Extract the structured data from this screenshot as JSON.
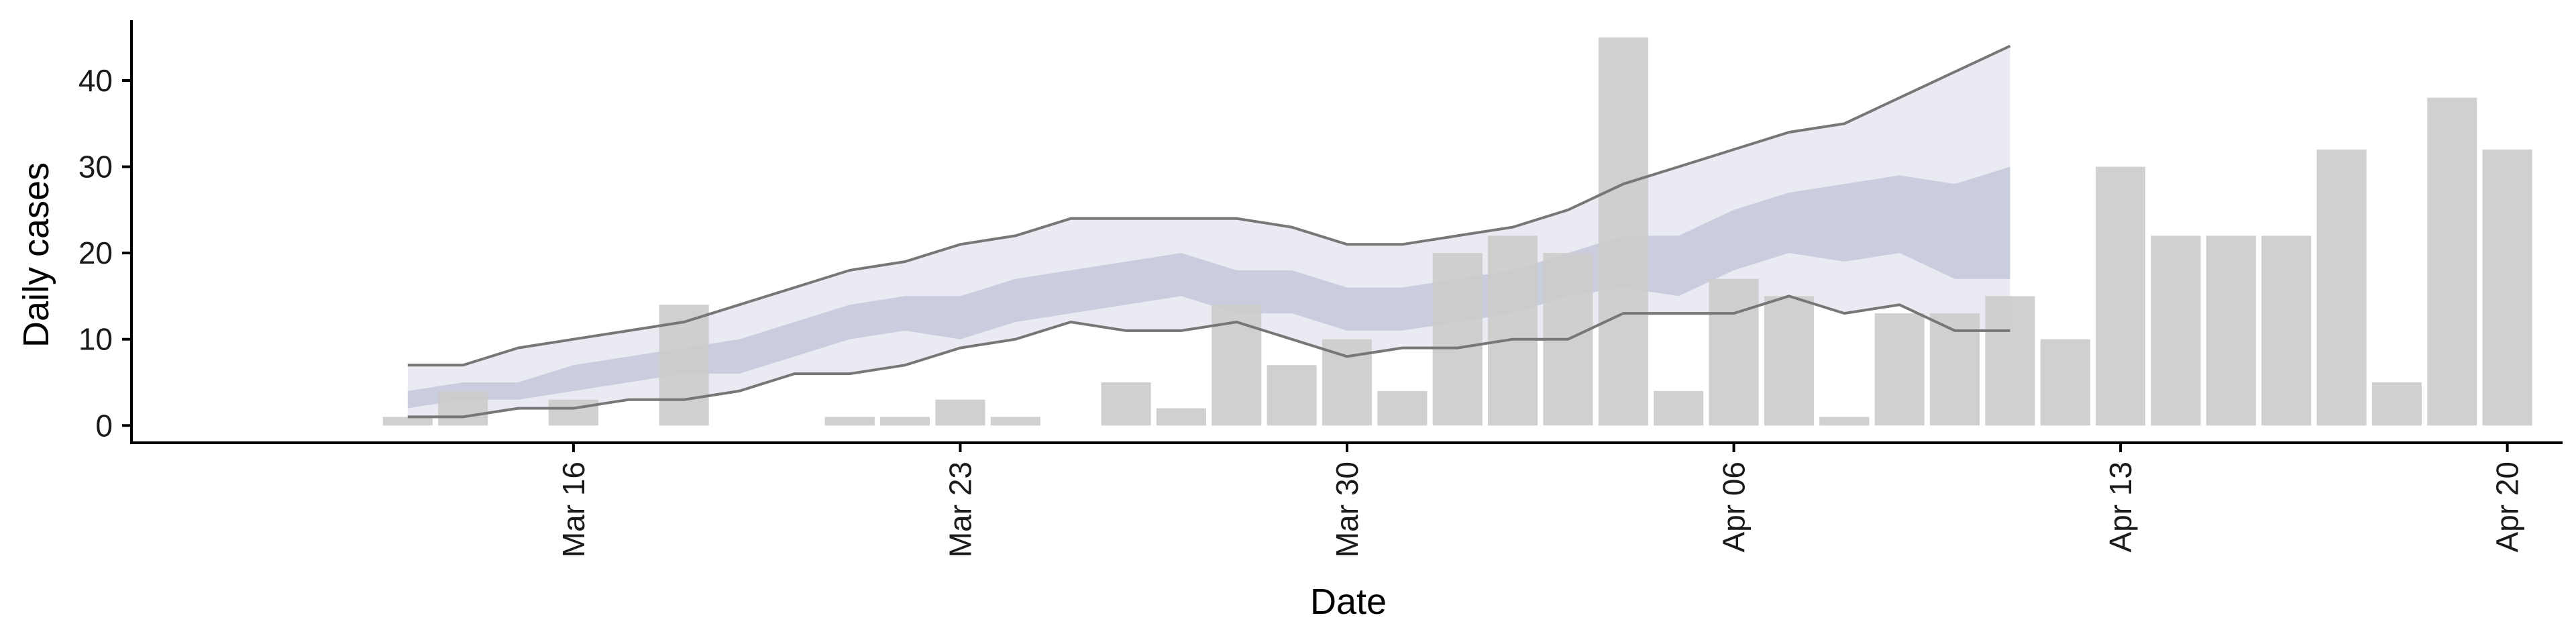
{
  "chart_data": {
    "type": "bar",
    "xlabel": "Date",
    "ylabel": "Daily cases",
    "ylim": [
      -2,
      47
    ],
    "y_ticks": [
      0,
      10,
      20,
      30,
      40
    ],
    "x_ticks": [
      {
        "date": "2020-03-16",
        "label": "Mar 16"
      },
      {
        "date": "2020-03-23",
        "label": "Mar 23"
      },
      {
        "date": "2020-03-30",
        "label": "Mar 30"
      },
      {
        "date": "2020-04-06",
        "label": "Apr 06"
      },
      {
        "date": "2020-04-13",
        "label": "Apr 13"
      },
      {
        "date": "2020-04-20",
        "label": "Apr 20"
      }
    ],
    "xlim": [
      "2020-03-08",
      "2020-04-21"
    ],
    "grid": false,
    "legend": "none",
    "colors": {
      "bars": "#cccccc",
      "outer_band": "#e9eaf2",
      "inner_band": "#c3c8db",
      "bound_line": "#777777",
      "axis": "#000000"
    },
    "bars": [
      {
        "date": "2020-03-13",
        "value": 1
      },
      {
        "date": "2020-03-14",
        "value": 4
      },
      {
        "date": "2020-03-16",
        "value": 3
      },
      {
        "date": "2020-03-18",
        "value": 14
      },
      {
        "date": "2020-03-21",
        "value": 1
      },
      {
        "date": "2020-03-22",
        "value": 1
      },
      {
        "date": "2020-03-23",
        "value": 3
      },
      {
        "date": "2020-03-24",
        "value": 1
      },
      {
        "date": "2020-03-26",
        "value": 5
      },
      {
        "date": "2020-03-27",
        "value": 2
      },
      {
        "date": "2020-03-28",
        "value": 14
      },
      {
        "date": "2020-03-29",
        "value": 7
      },
      {
        "date": "2020-03-30",
        "value": 10
      },
      {
        "date": "2020-03-31",
        "value": 4
      },
      {
        "date": "2020-04-01",
        "value": 20
      },
      {
        "date": "2020-04-02",
        "value": 22
      },
      {
        "date": "2020-04-03",
        "value": 20
      },
      {
        "date": "2020-04-04",
        "value": 45
      },
      {
        "date": "2020-04-05",
        "value": 4
      },
      {
        "date": "2020-04-06",
        "value": 17
      },
      {
        "date": "2020-04-07",
        "value": 15
      },
      {
        "date": "2020-04-08",
        "value": 1
      },
      {
        "date": "2020-04-09",
        "value": 13
      },
      {
        "date": "2020-04-10",
        "value": 13
      },
      {
        "date": "2020-04-11",
        "value": 15
      },
      {
        "date": "2020-04-12",
        "value": 10
      },
      {
        "date": "2020-04-13",
        "value": 30
      },
      {
        "date": "2020-04-14",
        "value": 22
      },
      {
        "date": "2020-04-15",
        "value": 22
      },
      {
        "date": "2020-04-16",
        "value": 22
      },
      {
        "date": "2020-04-17",
        "value": 32
      },
      {
        "date": "2020-04-18",
        "value": 5
      },
      {
        "date": "2020-04-19",
        "value": 38
      },
      {
        "date": "2020-04-20",
        "value": 32
      }
    ],
    "band_dates": [
      "2020-03-13",
      "2020-03-14",
      "2020-03-15",
      "2020-03-16",
      "2020-03-17",
      "2020-03-18",
      "2020-03-19",
      "2020-03-20",
      "2020-03-21",
      "2020-03-22",
      "2020-03-23",
      "2020-03-24",
      "2020-03-25",
      "2020-03-26",
      "2020-03-27",
      "2020-03-28",
      "2020-03-29",
      "2020-03-30",
      "2020-03-31",
      "2020-04-01",
      "2020-04-02",
      "2020-04-03",
      "2020-04-04",
      "2020-04-05",
      "2020-04-06",
      "2020-04-07",
      "2020-04-08",
      "2020-04-09",
      "2020-04-10",
      "2020-04-11",
      "2020-04-12"
    ],
    "outer_upper": [
      7,
      7,
      9,
      10,
      11,
      12,
      14,
      16,
      18,
      19,
      21,
      22,
      24,
      24,
      24,
      24,
      23,
      21,
      21,
      22,
      23,
      25,
      28,
      30,
      32,
      34,
      35,
      38,
      41,
      44,
      null
    ],
    "outer_lower": [
      1,
      1,
      2,
      2,
      3,
      3,
      4,
      6,
      6,
      7,
      9,
      10,
      12,
      11,
      11,
      12,
      10,
      8,
      9,
      9,
      10,
      10,
      13,
      13,
      13,
      15,
      13,
      14,
      11,
      11,
      null
    ],
    "inner_upper": [
      4,
      5,
      5,
      7,
      8,
      9,
      10,
      12,
      14,
      15,
      15,
      17,
      18,
      19,
      20,
      18,
      18,
      16,
      16,
      17,
      18,
      20,
      22,
      22,
      25,
      27,
      28,
      29,
      28,
      30,
      null
    ],
    "inner_lower": [
      2,
      3,
      3,
      4,
      5,
      6,
      6,
      8,
      10,
      11,
      10,
      12,
      13,
      14,
      15,
      13,
      13,
      11,
      11,
      12,
      13,
      15,
      16,
      15,
      18,
      20,
      19,
      20,
      17,
      17,
      null
    ],
    "outer_upper_dates": [
      "2020-03-13",
      "2020-03-14",
      "2020-03-15",
      "2020-03-16",
      "2020-03-17",
      "2020-03-18",
      "2020-03-19",
      "2020-03-20",
      "2020-03-21",
      "2020-03-22",
      "2020-03-23",
      "2020-03-24",
      "2020-03-25",
      "2020-03-26",
      "2020-03-27",
      "2020-03-28",
      "2020-03-29",
      "2020-03-30",
      "2020-03-31",
      "2020-04-01",
      "2020-04-02",
      "2020-04-03",
      "2020-04-04",
      "2020-04-05",
      "2020-04-06",
      "2020-04-07",
      "2020-04-08",
      "2020-04-09",
      "2020-04-10",
      "2020-04-11"
    ]
  }
}
